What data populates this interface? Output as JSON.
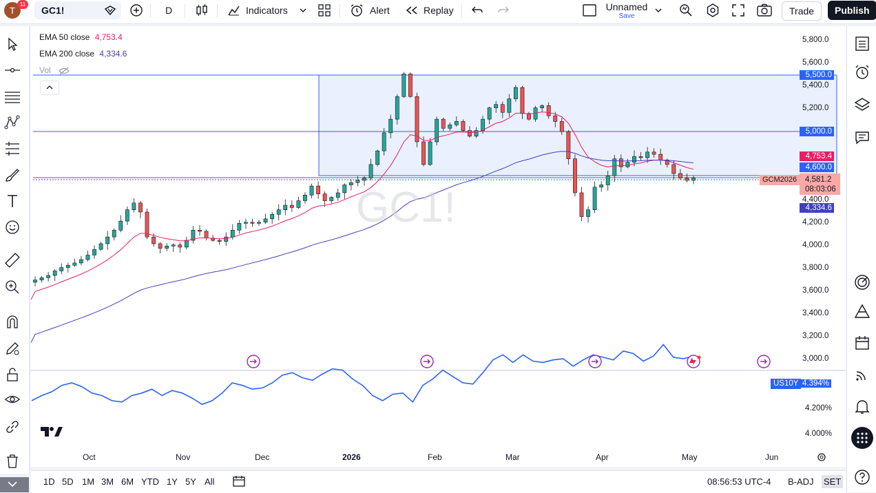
{
  "topbar": {
    "avatar_letter": "T",
    "notification_count": "11",
    "symbol": "GC1!",
    "interval": "D",
    "indicators_label": "Indicators",
    "alert_label": "Alert",
    "replay_label": "Replay",
    "layout_name": "Unnamed",
    "layout_save": "Save",
    "trade_label": "Trade",
    "publish_label": "Publish"
  },
  "legend": {
    "ema50_label": "EMA 50 close",
    "ema50_value": "4,753.4",
    "ema200_label": "EMA 200 close",
    "ema200_value": "4,334.6",
    "vol_label": "Vol"
  },
  "watermark": "GC1!",
  "price_axis": {
    "ticks": [
      "5,800.0",
      "5,600.0",
      "5,400.0",
      "5,200.0",
      "4,400.0",
      "4,200.0",
      "4,000.0",
      "3,800.0",
      "3,600.0",
      "3,400.0",
      "3,200.0",
      "3,000.0"
    ],
    "tags": {
      "level_5500": "5,500.0",
      "level_5000": "5,000.0",
      "ema50": "4,753.4",
      "level_4600": "4,600.0",
      "last_price": "4,581.2",
      "countdown": "08:03:06",
      "ema200": "4,334.6",
      "contract": "GCM2026"
    }
  },
  "lower_pane": {
    "symbol": "US10Y",
    "value": "4.394%",
    "ticks": [
      "4.200%",
      "4.000%"
    ]
  },
  "time_axis": [
    "Oct",
    "Nov",
    "Dec",
    "2026",
    "Feb",
    "Mar",
    "Apr",
    "May",
    "Jun"
  ],
  "bottombar": {
    "ranges": [
      "1D",
      "5D",
      "1M",
      "3M",
      "6M",
      "YTD",
      "1Y",
      "5Y",
      "All"
    ],
    "clock": "08:56:53 UTC-4",
    "badj": "B-ADJ",
    "session": "SET"
  },
  "colors": {
    "up": "#26a69a",
    "down": "#ef5350",
    "ema50": "#e91e63",
    "ema200": "#3f3fbf",
    "level": "#2962ff",
    "yield": "#2962ff",
    "event": "#9c27b0"
  },
  "chart_data": [
    {
      "type": "candlestick",
      "title": "GC1!",
      "ylim": [
        2950,
        5900
      ],
      "x": [
        "Oct",
        "Nov",
        "Dec",
        "2026",
        "Feb",
        "Mar",
        "Apr",
        "May",
        "Jun"
      ],
      "series": [
        {
          "name": "EMA 50 close",
          "last": 4753.4
        },
        {
          "name": "EMA 200 close",
          "last": 4334.6
        }
      ],
      "last_close": 4581.2,
      "horizontal_levels": [
        5500,
        5000,
        4600
      ],
      "close_path": [
        3680,
        3700,
        3720,
        3760,
        3790,
        3810,
        3830,
        3860,
        3900,
        3950,
        4000,
        4060,
        4120,
        4200,
        4300,
        4360,
        4280,
        4060,
        4000,
        3960,
        3980,
        3990,
        3970,
        4030,
        4120,
        4110,
        4050,
        4030,
        4020,
        4060,
        4120,
        4180,
        4190,
        4180,
        4190,
        4220,
        4260,
        4300,
        4340,
        4320,
        4380,
        4430,
        4510,
        4440,
        4380,
        4410,
        4450,
        4520,
        4540,
        4560,
        4580,
        4700,
        4820,
        4980,
        5100,
        5300,
        5500,
        5300,
        4900,
        4700,
        4900,
        5100,
        5020,
        5050,
        5080,
        5000,
        4950,
        5000,
        5100,
        5200,
        5230,
        5160,
        5280,
        5380,
        5150,
        5100,
        5200,
        5220,
        5130,
        5080,
        4990,
        4750,
        4450,
        4240,
        4300,
        4500,
        4520,
        4600,
        4750,
        4680,
        4720,
        4770,
        4760,
        4810,
        4790,
        4740,
        4700,
        4620,
        4580,
        4560,
        4581
      ]
    },
    {
      "type": "line",
      "title": "US10Y",
      "ylim": [
        3.9,
        4.6
      ],
      "last": 4.394,
      "values": [
        4.06,
        4.1,
        4.13,
        4.18,
        4.2,
        4.17,
        4.12,
        4.1,
        4.06,
        4.05,
        4.1,
        4.12,
        4.15,
        4.1,
        4.14,
        4.12,
        4.08,
        4.03,
        4.06,
        4.12,
        4.2,
        4.18,
        4.15,
        4.16,
        4.2,
        4.26,
        4.28,
        4.24,
        4.22,
        4.27,
        4.31,
        4.3,
        4.23,
        4.18,
        4.1,
        4.06,
        4.11,
        4.12,
        4.05,
        4.18,
        4.23,
        4.3,
        4.25,
        4.2,
        4.19,
        4.28,
        4.38,
        4.42,
        4.36,
        4.42,
        4.37,
        4.36,
        4.38,
        4.39,
        4.33,
        4.38,
        4.42,
        4.4,
        4.38,
        4.45,
        4.43,
        4.37,
        4.41,
        4.5,
        4.4,
        4.39,
        4.41
      ]
    }
  ]
}
